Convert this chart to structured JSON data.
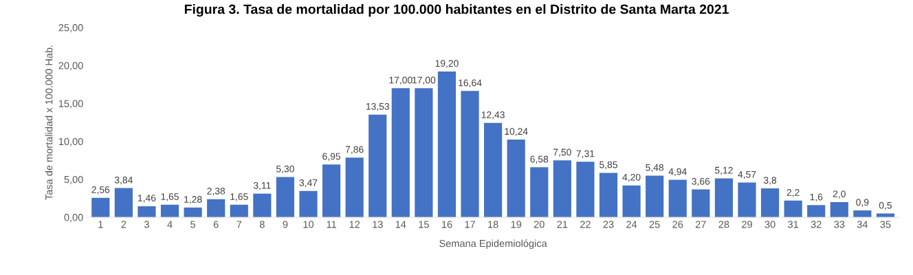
{
  "chart_data": {
    "type": "bar",
    "title": "Figura 3. Tasa de mortalidad por 100.000 habitantes en el Distrito de Santa Marta 2021",
    "xlabel": "Semana Epidemiológica",
    "ylabel": "Tasa de mortalidad x 100.000 Hab.",
    "categories": [
      "1",
      "2",
      "3",
      "4",
      "5",
      "6",
      "7",
      "8",
      "9",
      "10",
      "11",
      "12",
      "13",
      "14",
      "15",
      "16",
      "17",
      "18",
      "19",
      "20",
      "21",
      "22",
      "23",
      "24",
      "25",
      "26",
      "27",
      "28",
      "29",
      "30",
      "31",
      "32",
      "33",
      "34",
      "35"
    ],
    "values": [
      2.56,
      3.84,
      1.46,
      1.65,
      1.28,
      2.38,
      1.65,
      3.11,
      5.3,
      3.47,
      6.95,
      7.86,
      13.53,
      17.0,
      17.0,
      19.2,
      16.64,
      12.43,
      10.24,
      6.58,
      7.5,
      7.31,
      5.85,
      4.2,
      5.48,
      4.94,
      3.66,
      5.12,
      4.57,
      3.8,
      2.2,
      1.6,
      2.0,
      0.9,
      0.5
    ],
    "value_labels": [
      "2,56",
      "3,84",
      "1,46",
      "1,65",
      "1,28",
      "2,38",
      "1,65",
      "3,11",
      "5,30",
      "3,47",
      "6,95",
      "7,86",
      "13,53",
      "17,00",
      "17,00",
      "19,20",
      "16,64",
      "12,43",
      "10,24",
      "6,58",
      "7,50",
      "7,31",
      "5,85",
      "4,20",
      "5,48",
      "4,94",
      "3,66",
      "5,12",
      "4,57",
      "3,8",
      "2,2",
      "1,6",
      "2,0",
      "0,9",
      "0,5"
    ],
    "color": "#4472c4",
    "ylim": [
      0,
      25
    ],
    "yticks": [
      {
        "value": 0,
        "label": "0,00"
      },
      {
        "value": 5,
        "label": "5,00"
      },
      {
        "value": 10,
        "label": "10,00"
      },
      {
        "value": 15,
        "label": "15,00"
      },
      {
        "value": 20,
        "label": "20,00"
      },
      {
        "value": 25,
        "label": "25,00"
      }
    ],
    "grid": false,
    "legend": false
  }
}
